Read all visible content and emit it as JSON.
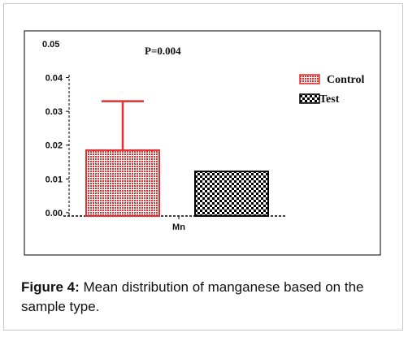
{
  "caption": {
    "label": "Figure 4:",
    "text": " Mean distribution of manganese based on the sample type."
  },
  "chart_data": {
    "type": "bar",
    "title": "",
    "xlabel": "",
    "ylabel": "",
    "categories": [
      "Mn"
    ],
    "series": [
      {
        "name": "Control",
        "values": [
          0.0185
        ],
        "error_plus": [
          0.0145
        ],
        "color": "#e03030",
        "pattern": "dense-dots"
      },
      {
        "name": "Test",
        "values": [
          0.0122
        ],
        "color": "#000000",
        "pattern": "checkerboard"
      }
    ],
    "annotation": "P=0.004",
    "ylim": [
      -0.001,
      0.05
    ],
    "y_tick_values": [
      0.04,
      0.03,
      0.02,
      0.01,
      0.0
    ],
    "y_tick_labels": [
      "0.04",
      "0.03",
      "0.02",
      "0.01",
      "0.00"
    ],
    "y_top_label": "0.05",
    "legend_position": "top-right",
    "grid": false
  }
}
